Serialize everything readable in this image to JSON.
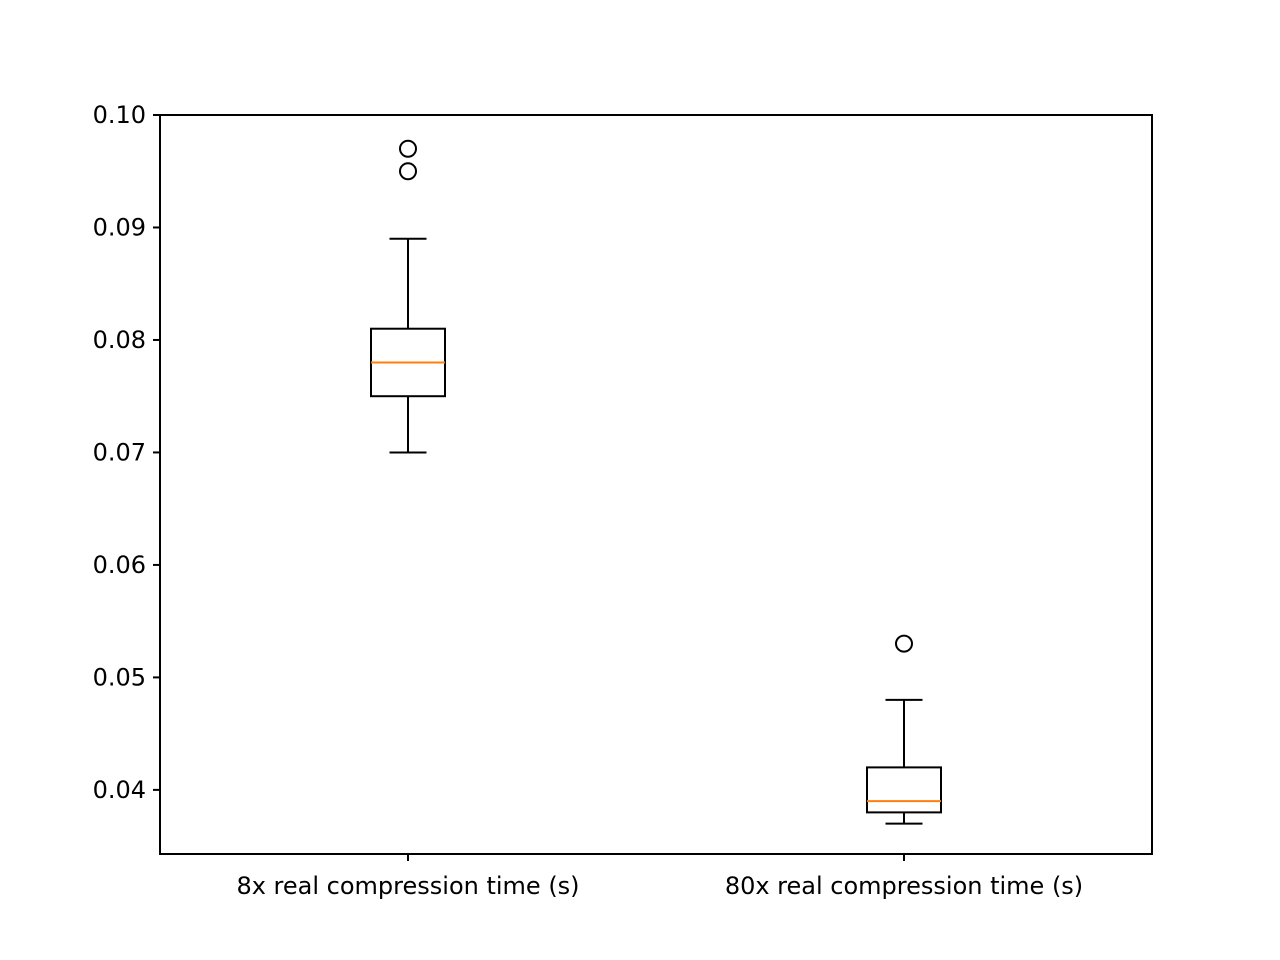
{
  "chart_data": {
    "type": "box",
    "title": "",
    "xlabel": "",
    "ylabel": "",
    "ylim": [
      0.0343,
      0.1
    ],
    "yticks": [
      "0.04",
      "0.05",
      "0.06",
      "0.07",
      "0.08",
      "0.09",
      "0.10"
    ],
    "grid": false,
    "legend": "none",
    "colors": {
      "box": "#000000",
      "median": "#ff7f0e"
    },
    "categories": [
      "8x real compression time (s)",
      "80x real compression time (s)"
    ],
    "boxes": [
      {
        "label": "8x real compression time (s)",
        "whisker_low": 0.07,
        "q1": 0.075,
        "median": 0.078,
        "q3": 0.081,
        "whisker_high": 0.089,
        "outliers": [
          0.095,
          0.097
        ]
      },
      {
        "label": "80x real compression time (s)",
        "whisker_low": 0.037,
        "q1": 0.038,
        "median": 0.039,
        "q3": 0.042,
        "whisker_high": 0.048,
        "outliers": [
          0.053
        ]
      }
    ]
  }
}
